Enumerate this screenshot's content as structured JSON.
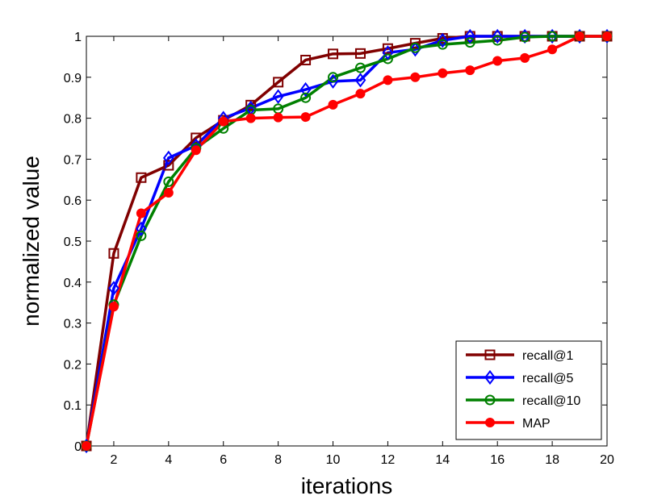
{
  "chart_data": {
    "type": "line",
    "title": "",
    "xlabel": "iterations",
    "ylabel": "normalized value",
    "xlim": [
      1,
      20
    ],
    "ylim": [
      0,
      1
    ],
    "xticks": [
      2,
      4,
      6,
      8,
      10,
      12,
      14,
      16,
      18,
      20
    ],
    "xtick_labels": [
      "2",
      "4",
      "6",
      "8",
      "10",
      "12",
      "14",
      "16",
      "18",
      "20"
    ],
    "yticks": [
      0,
      0.1,
      0.2,
      0.3,
      0.4,
      0.5,
      0.6,
      0.7,
      0.8,
      0.9,
      1
    ],
    "ytick_labels": [
      "0",
      "0.1",
      "0.2",
      "0.3",
      "0.4",
      "0.5",
      "0.6",
      "0.7",
      "0.8",
      "0.9",
      "1"
    ],
    "grid": false,
    "legend_position": "bottom-right",
    "x": [
      1,
      2,
      3,
      4,
      5,
      6,
      7,
      8,
      9,
      10,
      11,
      12,
      13,
      14,
      15,
      16,
      17,
      18,
      19,
      20
    ],
    "series": [
      {
        "name": "recall@1",
        "color": "#800000",
        "marker": "square",
        "values": [
          0,
          0.47,
          0.655,
          0.685,
          0.752,
          0.795,
          0.832,
          0.888,
          0.942,
          0.957,
          0.958,
          0.97,
          0.983,
          0.995,
          1.0,
          1.0,
          1.0,
          1.0,
          1.0,
          1.0
        ]
      },
      {
        "name": "recall@5",
        "color": "#0000ff",
        "marker": "diamond",
        "values": [
          0,
          0.385,
          0.53,
          0.703,
          0.733,
          0.8,
          0.825,
          0.853,
          0.87,
          0.89,
          0.893,
          0.96,
          0.968,
          0.99,
          1.0,
          1.0,
          1.0,
          1.0,
          1.0,
          1.0
        ]
      },
      {
        "name": "recall@10",
        "color": "#008000",
        "marker": "circle",
        "values": [
          0,
          0.345,
          0.513,
          0.645,
          0.727,
          0.775,
          0.82,
          0.823,
          0.85,
          0.9,
          0.923,
          0.945,
          0.972,
          0.98,
          0.985,
          0.99,
          0.998,
          1.0,
          1.0,
          1.0
        ]
      },
      {
        "name": "MAP",
        "color": "#ff0000",
        "marker": "filled-circle",
        "values": [
          0,
          0.34,
          0.568,
          0.618,
          0.722,
          0.792,
          0.8,
          0.802,
          0.803,
          0.833,
          0.86,
          0.893,
          0.9,
          0.91,
          0.917,
          0.94,
          0.947,
          0.968,
          1.0,
          1.0
        ]
      }
    ]
  }
}
